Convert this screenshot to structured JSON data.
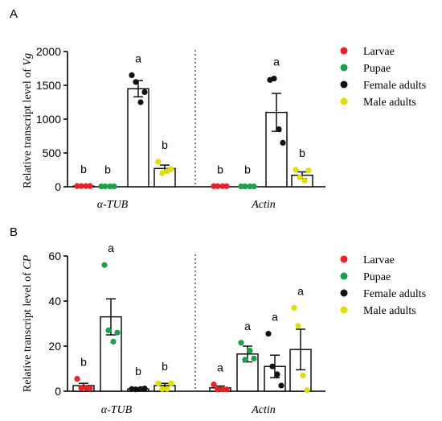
{
  "colors": {
    "larvae": "#e8202a",
    "pupae": "#1aa04a",
    "female": "#111111",
    "male": "#e0e000"
  },
  "chart_data": [
    {
      "panel": "A",
      "type": "bar",
      "ylabel_prefix": "Relative transcript level of ",
      "ylabel_italic": "Vg",
      "ylim": [
        0,
        2000
      ],
      "yticks": [
        0,
        500,
        1000,
        1500,
        2000
      ],
      "groups": [
        "α-TUB",
        "Actin"
      ],
      "legend": [
        "Larvae",
        "Pupae",
        "Female adults",
        "Male adults"
      ],
      "legend_position": "right",
      "series": [
        {
          "name": "Larvae",
          "color_key": "larvae",
          "means": [
            10,
            8
          ],
          "sem": [
            0,
            0
          ],
          "points": [
            [
              10,
              10,
              10,
              10
            ],
            [
              8,
              8,
              8,
              8
            ]
          ],
          "letters": [
            "b",
            "b"
          ]
        },
        {
          "name": "Pupae",
          "color_key": "pupae",
          "means": [
            5,
            5
          ],
          "sem": [
            0,
            0
          ],
          "points": [
            [
              5,
              5,
              5,
              5
            ],
            [
              5,
              5,
              5,
              5
            ]
          ],
          "letters": [
            "b",
            "b"
          ]
        },
        {
          "name": "Female adults",
          "color_key": "female",
          "means": [
            1450,
            1100
          ],
          "sem": [
            120,
            280
          ],
          "points": [
            [
              1650,
              1550,
              1250,
              1400
            ],
            [
              1580,
              1600,
              850,
              650
            ]
          ],
          "letters": [
            "a",
            "a"
          ]
        },
        {
          "name": "Male adults",
          "color_key": "male",
          "means": [
            270,
            170
          ],
          "sem": [
            50,
            50
          ],
          "points": [
            [
              370,
              200,
              230,
              260
            ],
            [
              250,
              140,
              90,
              240
            ]
          ],
          "letters": [
            "b",
            "b"
          ]
        }
      ]
    },
    {
      "panel": "B",
      "type": "bar",
      "ylabel_prefix": "Relative transcript level of ",
      "ylabel_italic": "CP",
      "ylim": [
        0,
        60
      ],
      "yticks": [
        0,
        20,
        40,
        60
      ],
      "groups": [
        "α-TUB",
        "Actin"
      ],
      "legend": [
        "Larvae",
        "Pupae",
        "Female adults",
        "Male adults"
      ],
      "legend_position": "right",
      "series": [
        {
          "name": "Larvae",
          "color_key": "larvae",
          "means": [
            2.5,
            1.5
          ],
          "sem": [
            1,
            0.8
          ],
          "points": [
            [
              5.5,
              1.5,
              1.5,
              1.2
            ],
            [
              3,
              0.8,
              0.8,
              0.8
            ]
          ],
          "letters": [
            "b",
            "a"
          ]
        },
        {
          "name": "Pupae",
          "color_key": "pupae",
          "means": [
            33,
            16.5
          ],
          "sem": [
            8,
            3.5
          ],
          "points": [
            [
              56,
              27,
              22,
              26
            ],
            [
              21.5,
              14,
              18,
              14.5
            ]
          ],
          "letters": [
            "a",
            "a"
          ]
        },
        {
          "name": "Female adults",
          "color_key": "female",
          "means": [
            1,
            11
          ],
          "sem": [
            0.5,
            5
          ],
          "points": [
            [
              1,
              0.8,
              1,
              1.2
            ],
            [
              25.5,
              11,
              7.5,
              2.5
            ]
          ],
          "letters": [
            "b",
            "a"
          ]
        },
        {
          "name": "Male adults",
          "color_key": "male",
          "means": [
            2.5,
            18.5
          ],
          "sem": [
            1,
            9
          ],
          "points": [
            [
              3.5,
              1,
              1,
              3.5
            ],
            [
              37,
              29,
              7,
              0.5
            ]
          ],
          "letters": [
            "b",
            "a"
          ]
        }
      ]
    }
  ],
  "panels_label": [
    "A",
    "B"
  ]
}
